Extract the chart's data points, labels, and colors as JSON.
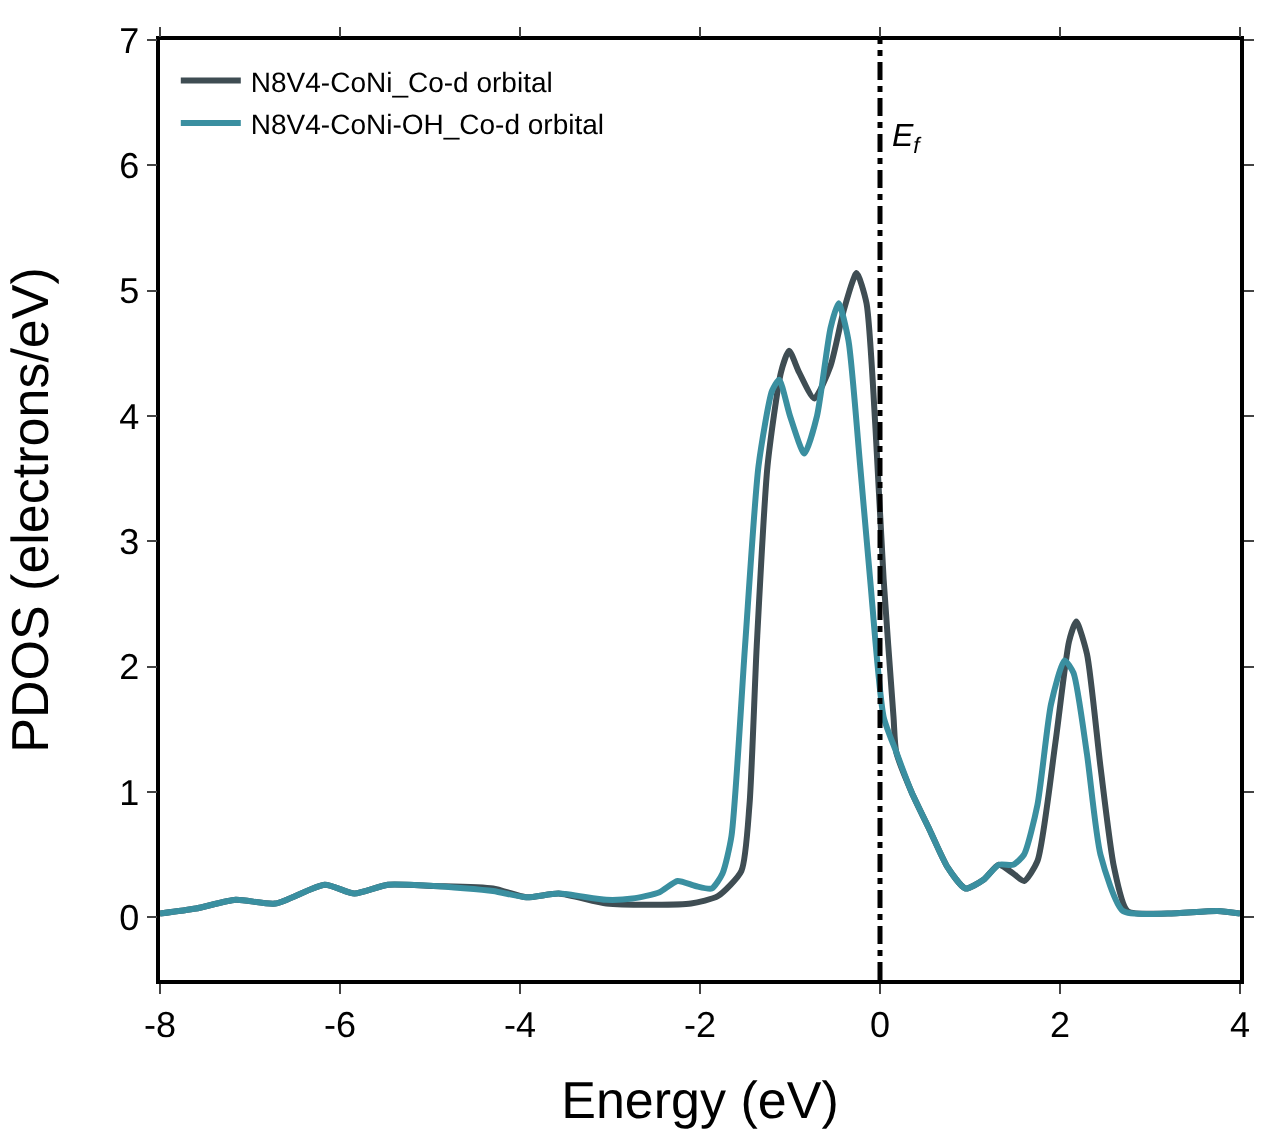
{
  "chart_data": {
    "type": "line",
    "xlabel": "Energy (eV)",
    "ylabel": "PDOS (electrons/eV)",
    "xlim": [
      -8,
      4
    ],
    "xticks": [
      -8,
      -6,
      -4,
      -2,
      0,
      2,
      4
    ],
    "ylim": [
      -0.5,
      7
    ],
    "yticks": [
      0,
      1,
      2,
      3,
      4,
      5,
      6,
      7
    ],
    "grid": false,
    "legend": "top left",
    "marker": "none",
    "line_style": "solid",
    "ref_lines": [
      {
        "axis": "x",
        "value": 0,
        "label": "E$_{f}$",
        "line_style": "dashdot",
        "color": "#000000"
      }
    ],
    "series": [
      {
        "name": "N8V4-CoNi_Co-d orbital",
        "color": "#3f4d53",
        "x": [
          -8,
          -7.6,
          -7.16,
          -6.72,
          -6.17,
          -5.84,
          -5.47,
          -4.96,
          -4.3,
          -3.93,
          -3.57,
          -3.04,
          -2.5,
          -2.1,
          -1.8,
          -1.54,
          -1.45,
          -1.37,
          -1.25,
          -1.1,
          -1.01,
          -0.9,
          -0.73,
          -0.55,
          -0.4,
          -0.26,
          -0.15,
          -0.05,
          0.04,
          0.15,
          0.18,
          0.35,
          0.55,
          0.75,
          0.95,
          1.15,
          1.32,
          1.48,
          1.6,
          1.75,
          1.95,
          2.1,
          2.18,
          2.3,
          2.45,
          2.6,
          2.75,
          3.2,
          3.75,
          4
        ],
        "values": [
          0.03,
          0.07,
          0.14,
          0.11,
          0.26,
          0.19,
          0.26,
          0.25,
          0.23,
          0.16,
          0.19,
          0.11,
          0.1,
          0.11,
          0.17,
          0.37,
          0.9,
          2.16,
          3.6,
          4.35,
          4.52,
          4.35,
          4.14,
          4.4,
          4.85,
          5.14,
          4.9,
          3.9,
          2.7,
          1.6,
          1.32,
          1.0,
          0.7,
          0.4,
          0.23,
          0.3,
          0.42,
          0.35,
          0.29,
          0.45,
          1.4,
          2.2,
          2.36,
          2.1,
          1.2,
          0.4,
          0.05,
          0.03,
          0.05,
          0.03
        ]
      },
      {
        "name": "N8V4-CoNi-OH_Co-d orbital",
        "color": "#3a8fa0",
        "x": [
          -8,
          -7.6,
          -7.16,
          -6.72,
          -6.17,
          -5.84,
          -5.47,
          -4.96,
          -4.3,
          -3.93,
          -3.57,
          -3.04,
          -2.75,
          -2.45,
          -2.25,
          -2.05,
          -1.87,
          -1.75,
          -1.65,
          -1.5,
          -1.35,
          -1.2,
          -1.12,
          -1.0,
          -0.84,
          -0.7,
          -0.55,
          -0.46,
          -0.35,
          -0.22,
          -0.11,
          0.04,
          0.18,
          0.35,
          0.55,
          0.75,
          0.95,
          1.15,
          1.32,
          1.48,
          1.6,
          1.75,
          1.9,
          2.05,
          2.15,
          2.3,
          2.45,
          2.7,
          3.2,
          3.75,
          4
        ],
        "values": [
          0.03,
          0.07,
          0.14,
          0.11,
          0.26,
          0.19,
          0.26,
          0.25,
          0.21,
          0.16,
          0.19,
          0.14,
          0.15,
          0.2,
          0.29,
          0.25,
          0.23,
          0.35,
          0.65,
          2.16,
          3.6,
          4.2,
          4.29,
          4.0,
          3.7,
          4.0,
          4.7,
          4.9,
          4.6,
          3.6,
          2.7,
          1.6,
          1.32,
          1.0,
          0.7,
          0.4,
          0.23,
          0.3,
          0.42,
          0.42,
          0.5,
          0.9,
          1.7,
          2.05,
          1.95,
          1.3,
          0.5,
          0.05,
          0.03,
          0.05,
          0.03
        ]
      }
    ]
  }
}
